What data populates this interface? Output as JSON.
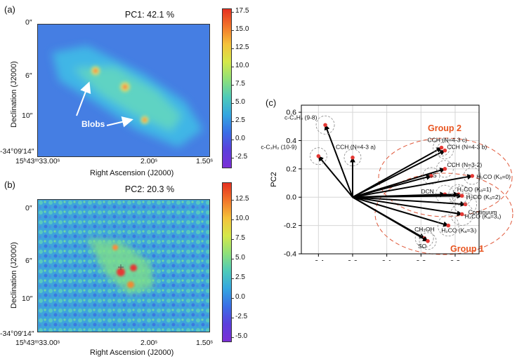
{
  "panel_a": {
    "label": "(a)",
    "title": "PC1: 42.1 %",
    "ylabel": "Declination (J2000)",
    "xlabel": "Right Ascension (J2000)",
    "yticks": [
      "0″",
      "6″",
      "10″",
      "-34°09′14″"
    ],
    "xticks": [
      "15ʰ43ᵐ33.00ˢ",
      "2.00ˢ",
      "1.50ˢ"
    ],
    "annotation": "Blobs",
    "colorbar_ticks": [
      "17.5",
      "15.0",
      "12.5",
      "10.0",
      "7.5",
      "5.0",
      "2.5",
      "0.0",
      "-2.5"
    ]
  },
  "panel_b": {
    "label": "(b)",
    "title": "PC2: 20.3 %",
    "ylabel": "Declination (J2000)",
    "xlabel": "Right Ascension (J2000)",
    "yticks": [
      "0″",
      "6″",
      "10″",
      "-34°09′14″"
    ],
    "xticks": [
      "15ʰ43ᵐ33.00ˢ",
      "2.00ˢ",
      "1.50ˢ"
    ],
    "colorbar_ticks": [
      "12.5",
      "10.0",
      "7.5",
      "5.0",
      "2.5",
      "0.0",
      "-2.5",
      "-5.0"
    ]
  },
  "panel_c": {
    "label": "(c)",
    "group2": "Group 2",
    "group1": "Group 1",
    "chart_data": {
      "type": "scatter",
      "xlabel": "PC1",
      "ylabel": "PC2",
      "xlim": [
        -0.15,
        0.37
      ],
      "ylim": [
        -0.4,
        0.65
      ],
      "xticks": [
        "-0.1",
        "0.0",
        "0.1",
        "0.2",
        "0.3"
      ],
      "yticks": [
        "0.6",
        "0.4",
        "0.2",
        "0.0",
        "-0.2",
        "-0.4"
      ],
      "grid": true,
      "points": [
        {
          "label": "c-C₃H₂ (9-8)",
          "x": -0.08,
          "y": 0.51
        },
        {
          "label": "c-C₃H₂ (10-9)",
          "x": -0.1,
          "y": 0.29
        },
        {
          "label": "CCH (N=4-3 a)",
          "x": 0.0,
          "y": 0.28
        },
        {
          "label": "CCH (N=4-3 c)",
          "x": 0.26,
          "y": 0.35
        },
        {
          "label": "CCH (N=4-3 b)",
          "x": 0.27,
          "y": 0.33
        },
        {
          "label": "CCH (N=3-2)",
          "x": 0.27,
          "y": 0.2
        },
        {
          "label": "CS",
          "x": 0.23,
          "y": 0.15
        },
        {
          "label": "H₂CO (Kₐ=0)",
          "x": 0.35,
          "y": 0.15
        },
        {
          "label": "DCN",
          "x": 0.27,
          "y": 0.02
        },
        {
          "label": "H₂CO (Kₐ=1)",
          "x": 0.31,
          "y": 0.02
        },
        {
          "label": "H₂CO (Kₐ=2)",
          "x": 0.32,
          "y": 0.01
        },
        {
          "label": "Continuum",
          "x": 0.33,
          "y": -0.05
        },
        {
          "label": "H₂CO (Kₐ=3₁)",
          "x": 0.32,
          "y": -0.12
        },
        {
          "label": "H₂CO (Kₐ=3ₗ)",
          "x": 0.28,
          "y": -0.2
        },
        {
          "label": "CH₃OH",
          "x": 0.21,
          "y": -0.29
        },
        {
          "label": "SO",
          "x": 0.22,
          "y": -0.31
        }
      ]
    }
  }
}
